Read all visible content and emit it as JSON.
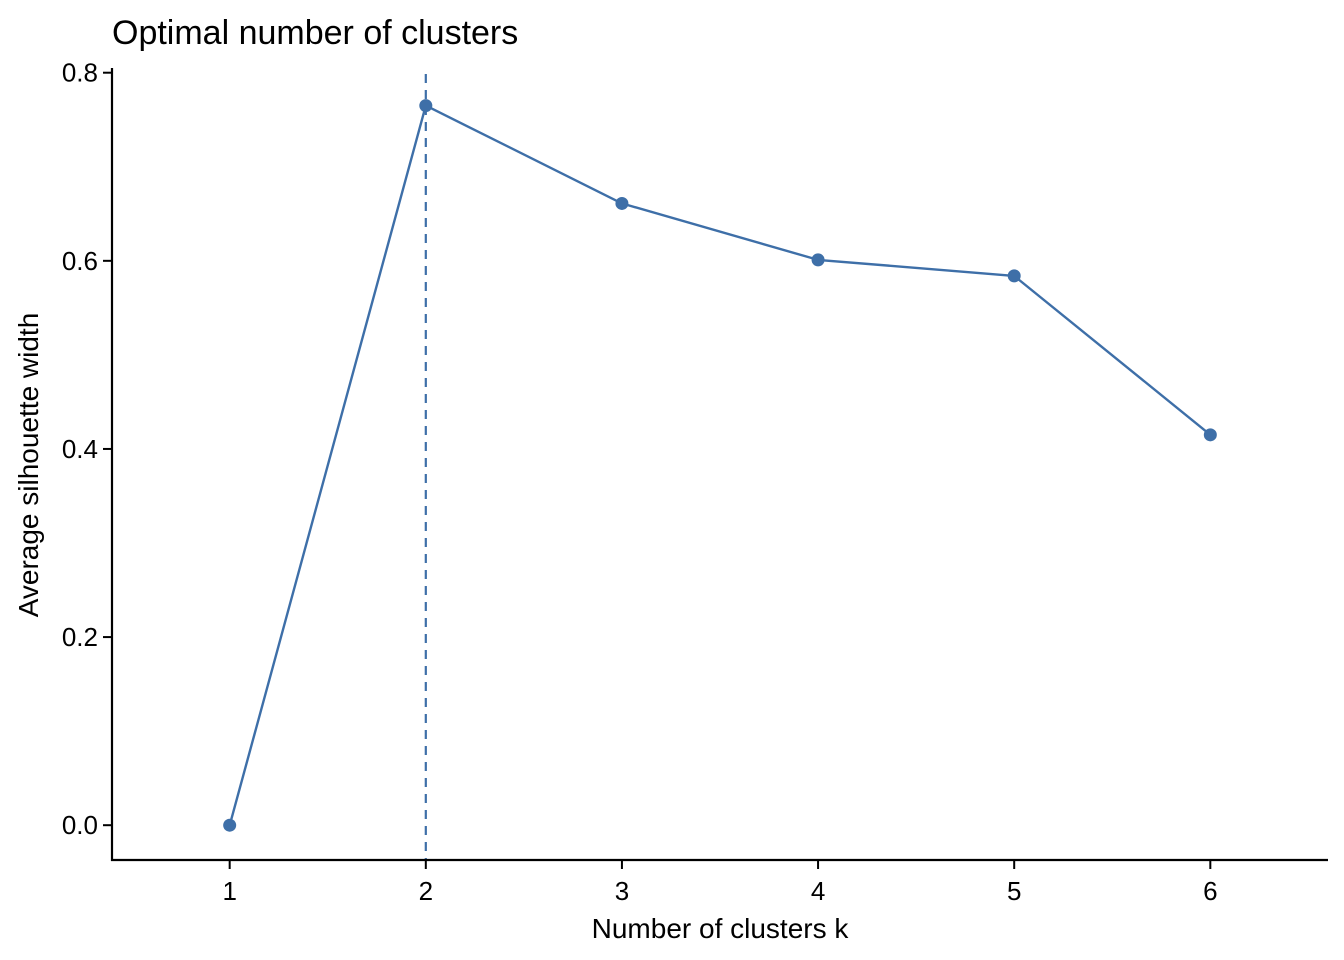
{
  "chart_data": {
    "type": "line",
    "title": "Optimal number of clusters",
    "xlabel": "Number of clusters k",
    "ylabel": "Average silhouette width",
    "x": [
      1,
      2,
      3,
      4,
      5,
      6
    ],
    "series": [
      {
        "values": [
          0.0,
          0.765,
          0.661,
          0.601,
          0.584,
          0.415
        ]
      }
    ],
    "xlim": [
      0.4,
      6.6
    ],
    "ylim": [
      -0.037,
      0.805
    ],
    "xticks": [
      "1",
      "2",
      "3",
      "4",
      "5",
      "6"
    ],
    "yticks": [
      "0.0",
      "0.2",
      "0.4",
      "0.6",
      "0.8"
    ],
    "reference_line": {
      "orientation": "vertical",
      "x": 2,
      "style": "dashed"
    },
    "grid": false,
    "legend": "none",
    "colors": {
      "series": "#3E6FA8",
      "axis": "#000000",
      "text": "#000000"
    }
  }
}
